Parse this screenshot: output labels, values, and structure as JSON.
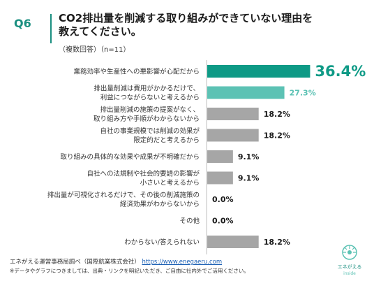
{
  "question_label": "Q6",
  "title_line1": "CO2排出量を削減する取り組みができていない理由を",
  "title_line2": "教えてください。",
  "note": "（複数回答）（n=11）",
  "source_prefix": "エネがえる運営事務局調べ（国際航業株式会社）",
  "source_url": "https://www.enegaeru.com",
  "disclaimer": "※データやグラフにつきましては、出典・リンクを明記いただき、ご自由に社内外でご活用ください。",
  "logo_text": "エネがえる",
  "logo_sub": "inside",
  "colors": {
    "accent": "#1a8f80",
    "primary_bar": "#0e9a86",
    "secondary_bar": "#5cc2b4",
    "other_bar": "#a6a6a6"
  },
  "chart_data": {
    "type": "bar",
    "orientation": "horizontal",
    "categories": [
      [
        "業務効率や生産性への悪影響が心配だから"
      ],
      [
        "排出量削減は費用がかかるだけで、",
        "利益につながらないと考えるから"
      ],
      [
        "排出量削減の施策の提案がなく、",
        "取り組み方や手順がわからないから"
      ],
      [
        "自社の事業規模では削減の効果が",
        "限定的だと考えるから"
      ],
      [
        "取り組みの具体的な効果や成果が不明確だから"
      ],
      [
        "自社への法規制や社会的要請の影響が",
        "小さいと考えるから"
      ],
      [
        "排出量が可視化されるだけで、その後の削減施策の",
        "経済効果がわからないから"
      ],
      [
        "その他"
      ],
      [
        "わからない/答えられない"
      ]
    ],
    "values": [
      36.4,
      27.3,
      18.2,
      18.2,
      9.1,
      9.1,
      0.0,
      0.0,
      18.2
    ],
    "value_labels": [
      "36.4%",
      "27.3%",
      "18.2%",
      "18.2%",
      "9.1%",
      "9.1%",
      "0.0%",
      "0.0%",
      "18.2%"
    ],
    "xlim": [
      0,
      40
    ]
  }
}
